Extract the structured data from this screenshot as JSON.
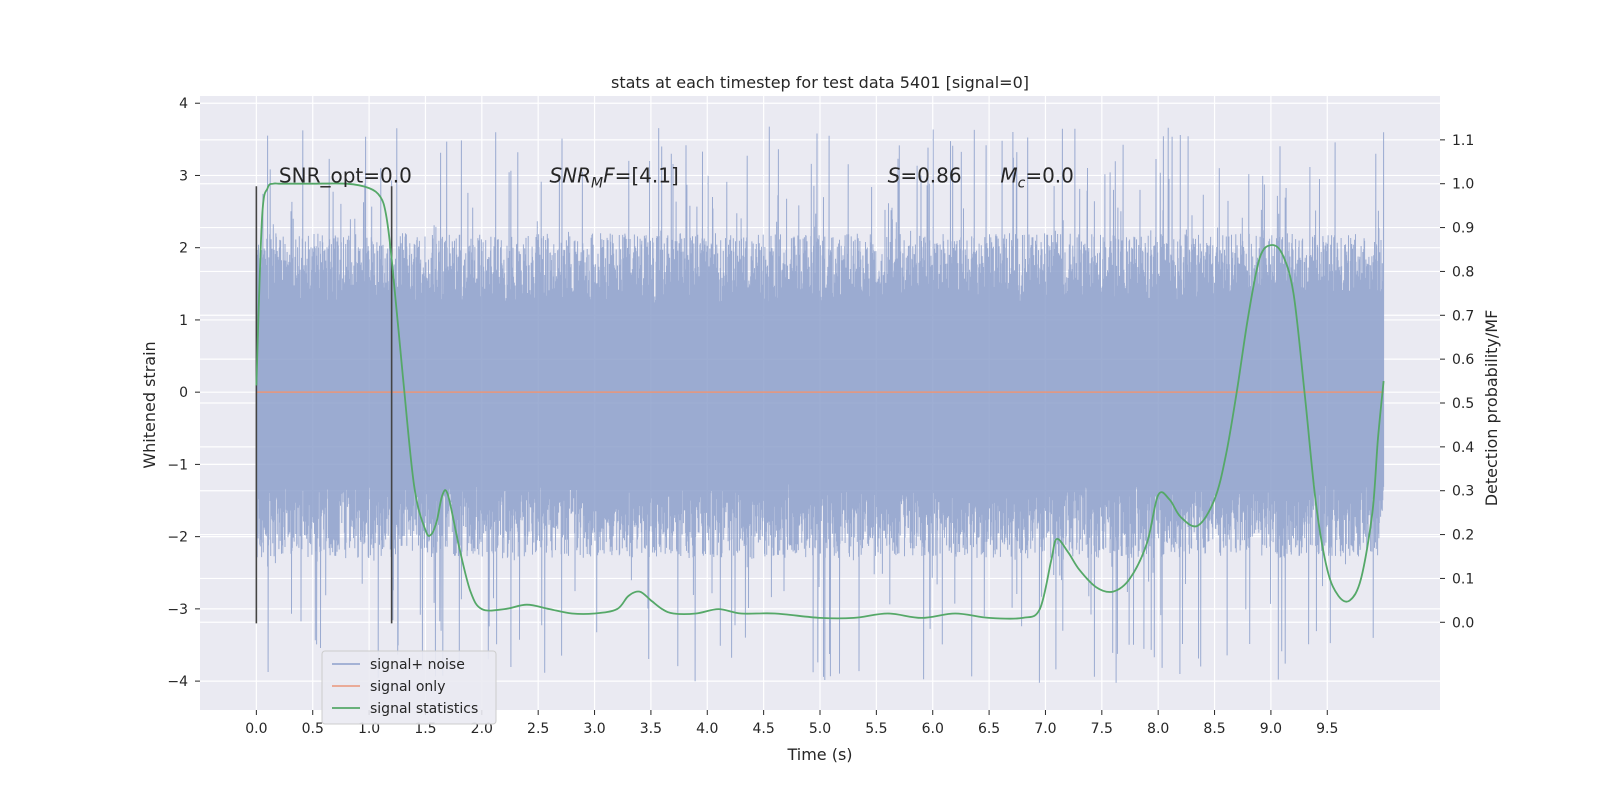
{
  "chart_data": {
    "type": "line",
    "title": "stats at each timestep for test data 5401 [signal=0]",
    "xlabel": "Time (s)",
    "ylabel_left": "Whitened strain",
    "ylabel_right": "Detection probability/MF",
    "xlim": [
      -0.5,
      10.5
    ],
    "ylim_left": [
      -4.4,
      4.1
    ],
    "ylim_right": [
      -0.2,
      1.2
    ],
    "xticks": [
      0.0,
      0.5,
      1.0,
      1.5,
      2.0,
      2.5,
      3.0,
      3.5,
      4.0,
      4.5,
      5.0,
      5.5,
      6.0,
      6.5,
      7.0,
      7.5,
      8.0,
      8.5,
      9.0,
      9.5
    ],
    "xtick_labels": [
      "0.0",
      "0.5",
      "1.0",
      "1.5",
      "2.0",
      "2.5",
      "3.0",
      "3.5",
      "4.0",
      "4.5",
      "5.0",
      "5.5",
      "6.0",
      "6.5",
      "7.0",
      "7.5",
      "8.0",
      "8.5",
      "9.0",
      "9.5"
    ],
    "yticks_left": [
      -4,
      -3,
      -2,
      -1,
      0,
      1,
      2,
      3,
      4
    ],
    "ytick_labels_left": [
      "−4",
      "−3",
      "−2",
      "−1",
      "0",
      "1",
      "2",
      "3",
      "4"
    ],
    "yticks_right": [
      0.0,
      0.1,
      0.2,
      0.3,
      0.4,
      0.5,
      0.6,
      0.7,
      0.8,
      0.9,
      1.0,
      1.1
    ],
    "ytick_labels_right": [
      "0.0",
      "0.1",
      "0.2",
      "0.3",
      "0.4",
      "0.5",
      "0.6",
      "0.7",
      "0.8",
      "0.9",
      "1.0",
      "1.1"
    ],
    "grid": true,
    "legend_position": "lower-left",
    "series": [
      {
        "name": "signal+ noise",
        "axis": "left",
        "color": "#8da0cb",
        "x_range": [
          0.0,
          10.0
        ],
        "approx_envelope": {
          "typical_max": 2.2,
          "typical_min": -2.3,
          "max": 3.68,
          "min": -4.05
        }
      },
      {
        "name": "signal only",
        "axis": "left",
        "color": "#e9967a",
        "x": [
          0.0,
          10.0
        ],
        "y": [
          0.0,
          0.0
        ]
      },
      {
        "name": "signal statistics",
        "axis": "right",
        "color": "#55a868",
        "x": [
          0.0,
          0.05,
          0.1,
          0.15,
          0.2,
          0.3,
          0.5,
          0.8,
          1.0,
          1.1,
          1.15,
          1.2,
          1.3,
          1.4,
          1.5,
          1.55,
          1.6,
          1.65,
          1.7,
          1.8,
          1.9,
          2.0,
          2.2,
          2.4,
          2.6,
          2.8,
          3.0,
          3.2,
          3.3,
          3.4,
          3.5,
          3.6,
          3.7,
          3.9,
          4.1,
          4.3,
          4.6,
          5.0,
          5.3,
          5.6,
          5.9,
          6.2,
          6.5,
          6.8,
          6.95,
          7.05,
          7.1,
          7.2,
          7.3,
          7.45,
          7.6,
          7.75,
          7.9,
          8.0,
          8.1,
          8.2,
          8.35,
          8.5,
          8.6,
          8.7,
          8.8,
          8.9,
          9.0,
          9.1,
          9.2,
          9.3,
          9.4,
          9.5,
          9.6,
          9.7,
          9.8,
          9.9,
          9.95,
          10.0
        ],
        "y": [
          0.54,
          0.92,
          0.99,
          1.0,
          1.0,
          1.0,
          1.0,
          1.0,
          0.99,
          0.97,
          0.93,
          0.83,
          0.56,
          0.31,
          0.21,
          0.2,
          0.23,
          0.29,
          0.29,
          0.17,
          0.07,
          0.03,
          0.03,
          0.04,
          0.03,
          0.02,
          0.02,
          0.03,
          0.06,
          0.07,
          0.05,
          0.03,
          0.02,
          0.02,
          0.03,
          0.02,
          0.02,
          0.01,
          0.01,
          0.02,
          0.01,
          0.02,
          0.01,
          0.01,
          0.03,
          0.14,
          0.19,
          0.16,
          0.12,
          0.08,
          0.07,
          0.1,
          0.18,
          0.29,
          0.28,
          0.24,
          0.22,
          0.28,
          0.38,
          0.53,
          0.7,
          0.83,
          0.86,
          0.84,
          0.75,
          0.52,
          0.27,
          0.12,
          0.06,
          0.05,
          0.1,
          0.25,
          0.42,
          0.55
        ]
      }
    ],
    "vertical_markers": [
      {
        "x": 0.0,
        "y0": -3.2,
        "y1": 2.85,
        "color": "#444444"
      },
      {
        "x": 1.2,
        "y0": -3.2,
        "y1": 2.85,
        "color": "#444444"
      }
    ],
    "annotations": [
      {
        "text": "SNR_opt=0.0",
        "x": 0.2,
        "y": 2.9
      },
      {
        "text": "F=[4.1]",
        "x": 2.6,
        "y": 2.9,
        "italic_prefix": "SNR",
        "subscript": "M"
      },
      {
        "text": "=0.86",
        "x": 5.6,
        "y": 2.9,
        "italic_prefix": "S"
      },
      {
        "text": "=0.0",
        "x": 6.6,
        "y": 2.9,
        "italic_prefix": "M",
        "subscript": "c"
      }
    ]
  }
}
